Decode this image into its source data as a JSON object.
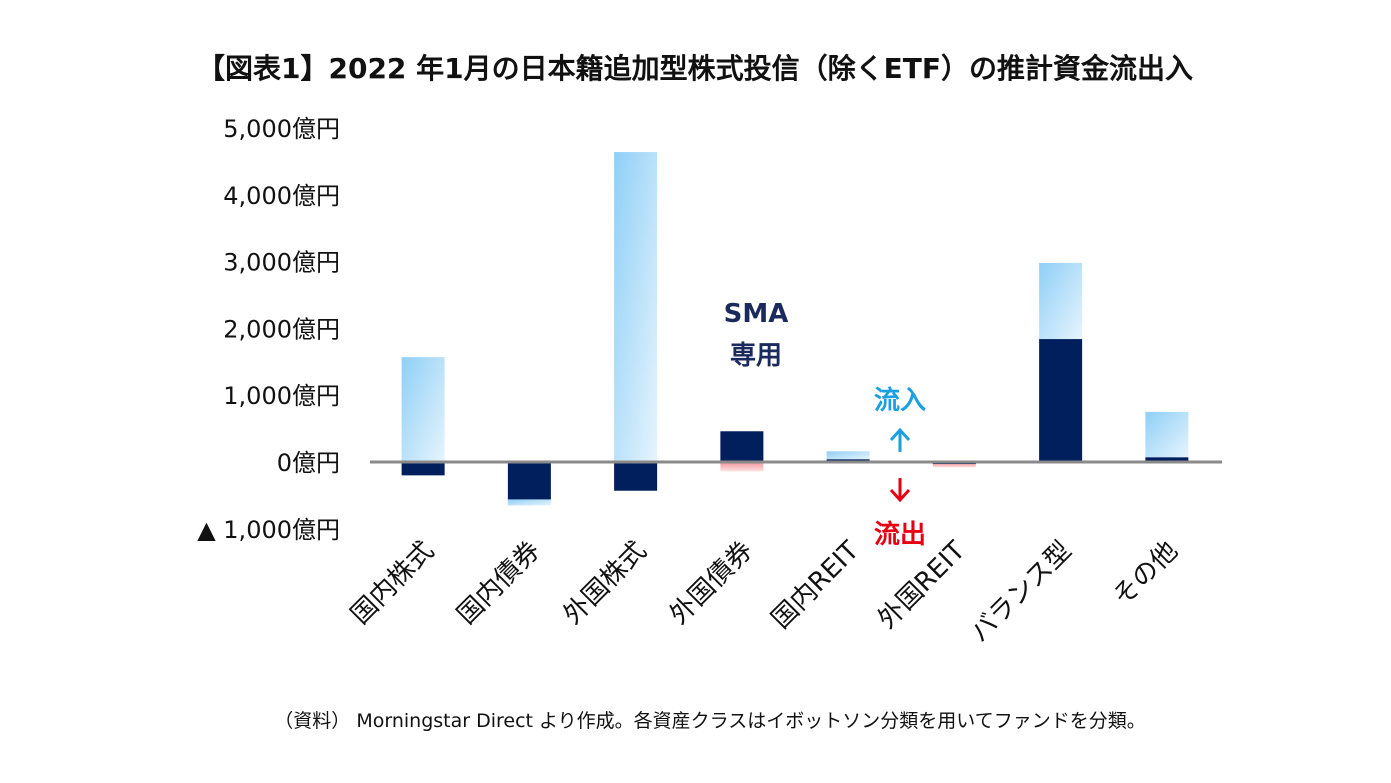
{
  "chart_data": {
    "type": "bar",
    "stacked": true,
    "title": "【図表1】2022 年1月の日本籍追加型株式投信（除くETF）の推計資金流出入",
    "categories": [
      "国内株式",
      "国内債券",
      "外国株式",
      "外国債券",
      "国内REIT",
      "外国REIT",
      "バランス型",
      "その他"
    ],
    "y_ticks": [
      5000,
      4000,
      3000,
      2000,
      1000,
      0,
      -1000
    ],
    "y_tick_labels": [
      "5,000億円",
      "4,000億円",
      "3,000億円",
      "2,000億円",
      "1,000億円",
      "0億円",
      "▲ 1,000億円"
    ],
    "ylim": [
      -1000,
      5000
    ],
    "unit": "億円",
    "grid": false,
    "series": [
      {
        "values": [
          -200,
          -560,
          -430,
          460,
          40,
          -20,
          1840,
          70
        ],
        "color": "#001f5c"
      },
      {
        "values": [
          1570,
          -90,
          4640,
          -140,
          120,
          -60,
          1140,
          680
        ],
        "point_colors": [
          "#9fd6f7",
          "#9fd6f7",
          "#9fd6f7",
          "#f5a0a8",
          "#9fd6f7",
          "#f5a0a8",
          "#9fd6f7",
          "#9fd6f7"
        ]
      }
    ],
    "annotations": {
      "sma_line1": "SMA",
      "sma_line2": "専用",
      "inflow": "流入",
      "outflow": "流出",
      "inflow_color": "#1aa0e0",
      "outflow_color": "#e60012"
    }
  },
  "footer": "（資料） Morningstar Direct より作成。各資産クラスはイボットソン分類を用いてファンドを分類。"
}
